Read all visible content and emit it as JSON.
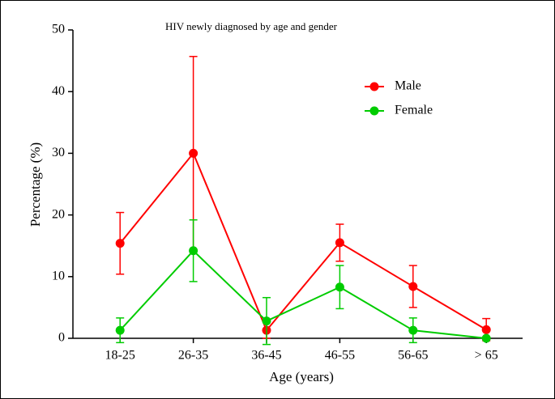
{
  "chart_data": {
    "type": "line",
    "title": "HIV newly diagnosed by age and gender",
    "x_label": "Age (years)",
    "y_label": "Percentage (%)",
    "categories": [
      "18-25",
      "26-35",
      "36-45",
      "46-55",
      "56-65",
      "> 65"
    ],
    "series": [
      {
        "name": "Male",
        "color": "#ff0000",
        "values": [
          15.4,
          30,
          1.3,
          15.5,
          8.4,
          1.4
        ],
        "errors": [
          5,
          15.7,
          1.3,
          3,
          3.4,
          1.8
        ]
      },
      {
        "name": "Female",
        "color": "#00cc00",
        "values": [
          1.3,
          14.2,
          2.8,
          8.3,
          1.3,
          0
        ],
        "errors": [
          2,
          5,
          3.8,
          3.5,
          2,
          0
        ]
      }
    ],
    "ylim": [
      0,
      50
    ],
    "yticks": [
      0,
      10,
      20,
      30,
      40,
      50
    ],
    "legend": "upper right",
    "grid": false
  }
}
